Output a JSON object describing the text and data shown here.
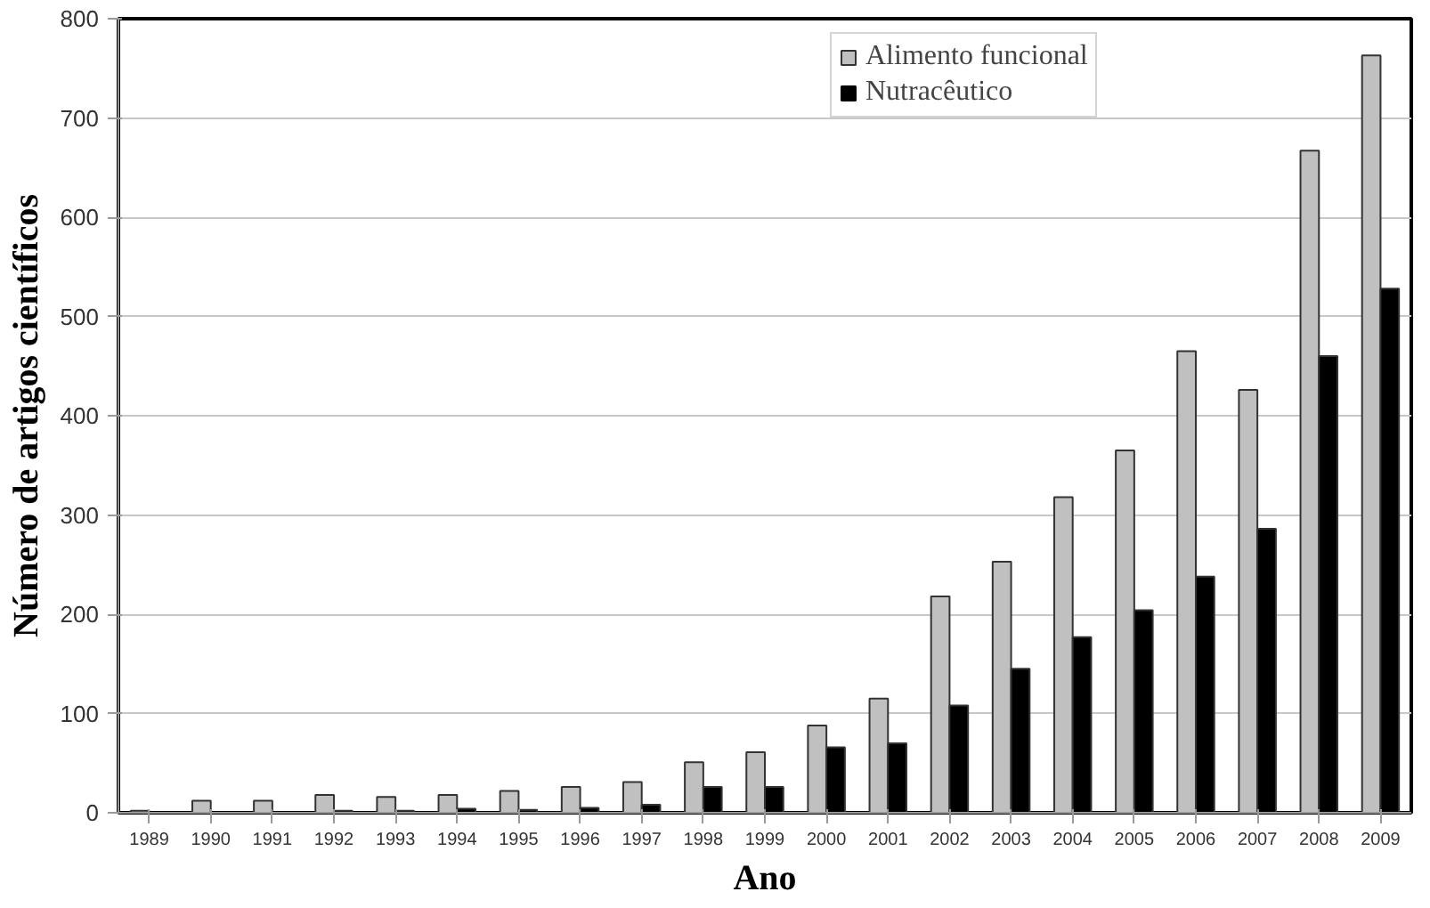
{
  "chart_data": {
    "type": "bar",
    "xlabel": "Ano",
    "ylabel": "Número de artigos científicos",
    "categories": [
      "1989",
      "1990",
      "1991",
      "1992",
      "1993",
      "1994",
      "1995",
      "1996",
      "1997",
      "1998",
      "1999",
      "2000",
      "2001",
      "2002",
      "2003",
      "2004",
      "2005",
      "2006",
      "2007",
      "2008",
      "2009"
    ],
    "series": [
      {
        "name": "Alimento funcional",
        "color": "#c0c0c0",
        "values": [
          2,
          12,
          12,
          18,
          16,
          18,
          22,
          26,
          31,
          51,
          61,
          88,
          115,
          218,
          253,
          318,
          365,
          465,
          426,
          667,
          763
        ]
      },
      {
        "name": "Nutracêutico",
        "color": "#000000",
        "values": [
          0,
          0,
          0,
          2,
          2,
          4,
          3,
          5,
          8,
          26,
          26,
          66,
          70,
          108,
          145,
          177,
          204,
          238,
          286,
          460,
          528
        ]
      }
    ],
    "ylim": [
      0,
      800
    ],
    "yticks": [
      0,
      100,
      200,
      300,
      400,
      500,
      600,
      700,
      800
    ],
    "grid": "y",
    "legend": "top right"
  }
}
